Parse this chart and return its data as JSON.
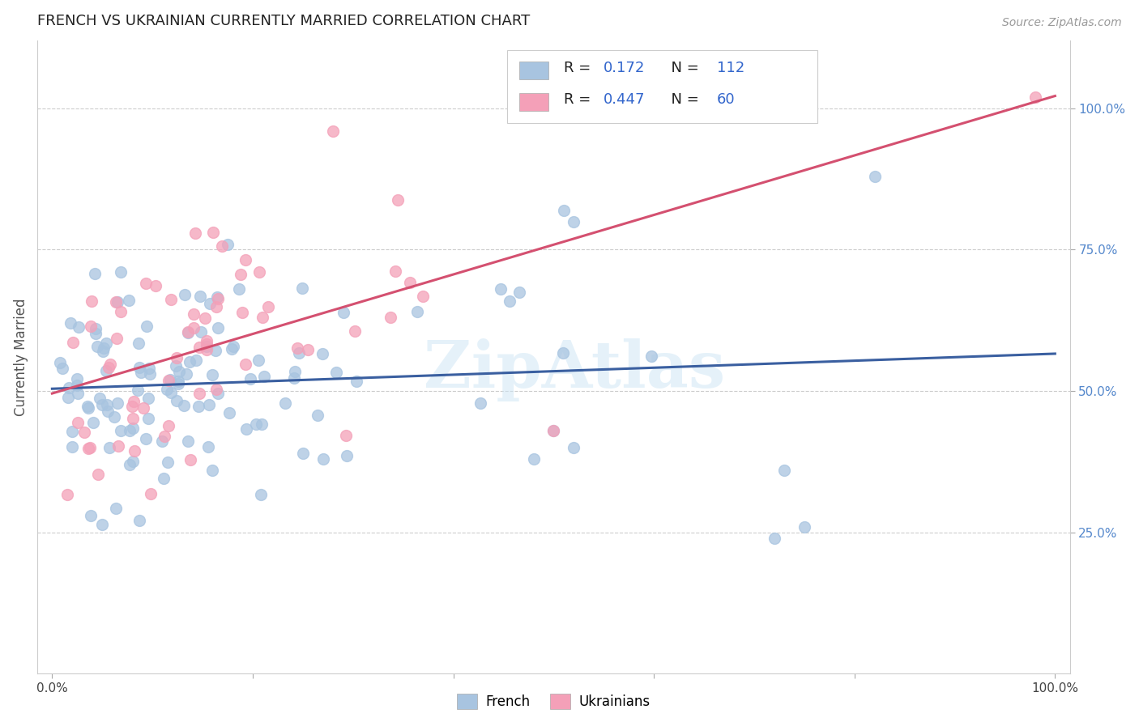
{
  "title": "FRENCH VS UKRAINIAN CURRENTLY MARRIED CORRELATION CHART",
  "source": "Source: ZipAtlas.com",
  "ylabel": "Currently Married",
  "legend_french_R": "0.172",
  "legend_french_N": "112",
  "legend_ukrainian_R": "0.447",
  "legend_ukrainian_N": "60",
  "french_color": "#a8c4e0",
  "ukrainian_color": "#f4a0b8",
  "french_line_color": "#3a5fa0",
  "ukrainian_line_color": "#d45070",
  "watermark": "ZipAtlas",
  "background_color": "#ffffff",
  "grid_color": "#cccccc",
  "right_tick_color": "#5588cc",
  "xlim": [
    0.0,
    1.0
  ],
  "ylim": [
    0.0,
    1.12
  ]
}
